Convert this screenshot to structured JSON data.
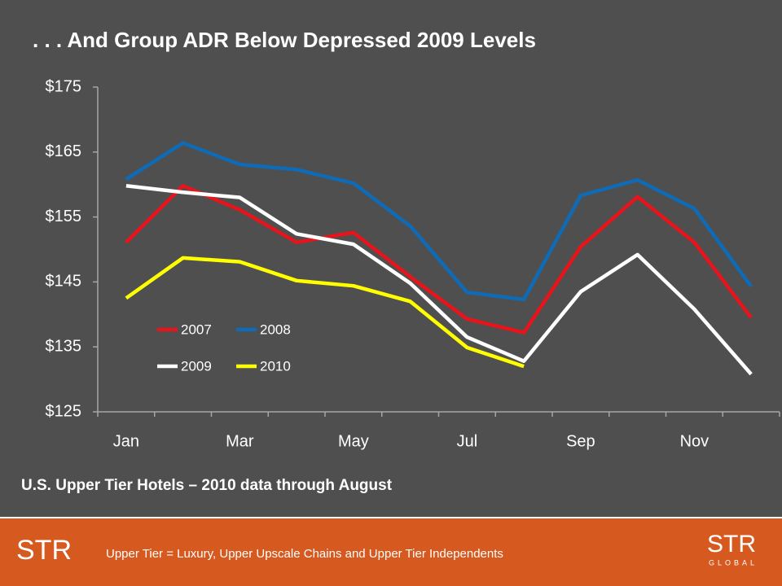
{
  "chart_data": {
    "type": "line",
    "title": ". . . And Group ADR Below Depressed 2009 Levels",
    "subtitle": "U.S. Upper Tier Hotels – 2010 data through August",
    "categories": [
      "Jan",
      null,
      "Mar",
      null,
      "May",
      null,
      "Jul",
      null,
      "Sep",
      null,
      "Nov",
      null
    ],
    "series": [
      {
        "name": "2007",
        "color": "#e8141b",
        "values": [
          151.1,
          159.8,
          156.1,
          151.1,
          152.6,
          145.8,
          139.3,
          137.2,
          150.4,
          158.1,
          151.1,
          139.5
        ]
      },
      {
        "name": "2008",
        "color": "#0f6bb5",
        "values": [
          160.8,
          166.4,
          163.1,
          162.3,
          160.2,
          153.6,
          143.4,
          142.3,
          158.3,
          160.7,
          156.3,
          144.3
        ]
      },
      {
        "name": "2009",
        "color": "#ffffff",
        "values": [
          159.8,
          158.8,
          158.0,
          152.4,
          150.8,
          144.8,
          136.5,
          132.8,
          143.5,
          149.2,
          140.8,
          130.8
        ]
      },
      {
        "name": "2010",
        "color": "#ffff00",
        "values": [
          142.5,
          148.7,
          148.1,
          145.2,
          144.4,
          142.0,
          134.9,
          132.0,
          null,
          null,
          null,
          null
        ]
      }
    ],
    "ylim": [
      125,
      175
    ],
    "yticks": [
      {
        "value": 125,
        "label": "$125"
      },
      {
        "value": 135,
        "label": "$135"
      },
      {
        "value": 145,
        "label": "$145"
      },
      {
        "value": 155,
        "label": "$155"
      },
      {
        "value": 165,
        "label": "$165"
      },
      {
        "value": 175,
        "label": "$175"
      }
    ],
    "grid": false
  },
  "footer": {
    "note": "Upper Tier = Luxury, Upper Upscale Chains and Upper Tier Independents",
    "logo_left": "STR",
    "logo_right": "STR",
    "logo_right_sub": "GLOBAL"
  }
}
